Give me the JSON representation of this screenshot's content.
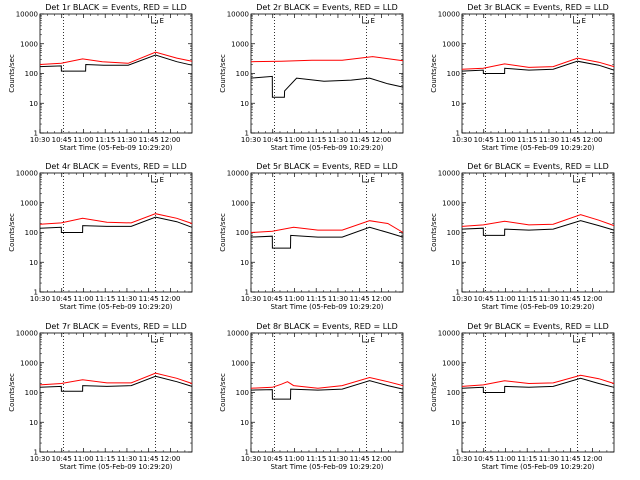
{
  "chart_data": [
    {
      "title": "Det 1r BLACK = Events, RED = LLD",
      "xlabel": "Start Time (05-Feb-09 10:29:20)",
      "ylabel": "Counts/sec",
      "type": "line",
      "yscale": "log",
      "ylim": [
        1,
        10000
      ],
      "xlim": [
        0,
        100
      ],
      "x_tick_labels": [
        "10:30",
        "10:45",
        "11:00",
        "11:15",
        "11:30",
        "11:45",
        "12:00"
      ],
      "y_tick_labels": [
        "1",
        "10",
        "100",
        "1000",
        "10000"
      ],
      "vlines_x": [
        15.5,
        76
      ],
      "marker_label": "E",
      "series": [
        {
          "color": "#ff0000",
          "x": [
            0,
            14,
            28,
            41,
            58,
            76,
            90,
            100
          ],
          "y": [
            200,
            220,
            310,
            250,
            220,
            520,
            330,
            260
          ]
        },
        {
          "color": "#000000",
          "x": [
            0,
            14,
            14.1,
            30,
            30.1,
            42,
            58,
            76,
            90,
            100
          ],
          "y": [
            170,
            180,
            120,
            120,
            200,
            190,
            190,
            420,
            250,
            190
          ]
        }
      ]
    },
    {
      "title": "Det 2r BLACK = Events, RED = LLD",
      "xlabel": "Start Time (05-Feb-09 10:29:20)",
      "ylabel": "Counts/sec",
      "type": "line",
      "yscale": "log",
      "ylim": [
        1,
        10000
      ],
      "xlim": [
        0,
        100
      ],
      "x_tick_labels": [
        "10:30",
        "10:45",
        "11:00",
        "11:15",
        "11:30",
        "11:45",
        "12:00"
      ],
      "y_tick_labels": [
        "1",
        "10",
        "100",
        "1000",
        "10000"
      ],
      "vlines_x": [
        15.5,
        76
      ],
      "marker_label": "E",
      "series": [
        {
          "color": "#ff0000",
          "x": [
            0,
            20,
            40,
            60,
            80,
            100
          ],
          "y": [
            250,
            260,
            280,
            280,
            370,
            270
          ]
        },
        {
          "color": "#000000",
          "x": [
            0,
            14,
            14.1,
            22,
            22.1,
            30,
            48,
            66,
            78,
            90,
            100
          ],
          "y": [
            70,
            80,
            16,
            16,
            26,
            70,
            55,
            60,
            70,
            45,
            35
          ]
        }
      ]
    },
    {
      "title": "Det 3r BLACK = Events, RED = LLD",
      "xlabel": "Start Time (05-Feb-09 10:29:20)",
      "ylabel": "Counts/sec",
      "type": "line",
      "yscale": "log",
      "ylim": [
        1,
        10000
      ],
      "xlim": [
        0,
        100
      ],
      "x_tick_labels": [
        "10:30",
        "10:45",
        "11:00",
        "11:15",
        "11:30",
        "11:45",
        "12:00"
      ],
      "y_tick_labels": [
        "1",
        "10",
        "100",
        "1000",
        "10000"
      ],
      "vlines_x": [
        15.5,
        76
      ],
      "marker_label": "E",
      "series": [
        {
          "color": "#ff0000",
          "x": [
            0,
            14,
            28,
            44,
            60,
            76,
            90,
            100
          ],
          "y": [
            140,
            150,
            210,
            160,
            170,
            330,
            240,
            170
          ]
        },
        {
          "color": "#000000",
          "x": [
            0,
            14,
            14.1,
            28,
            28.1,
            44,
            60,
            76,
            90,
            100
          ],
          "y": [
            120,
            130,
            100,
            100,
            150,
            130,
            140,
            260,
            190,
            130
          ]
        }
      ]
    },
    {
      "title": "Det 4r BLACK = Events, RED = LLD",
      "xlabel": "Start Time (05-Feb-09 10:29:20)",
      "ylabel": "Counts/sec",
      "type": "line",
      "yscale": "log",
      "ylim": [
        1,
        10000
      ],
      "xlim": [
        0,
        100
      ],
      "x_tick_labels": [
        "10:30",
        "10:45",
        "11:00",
        "11:15",
        "11:30",
        "11:45",
        "12:00"
      ],
      "y_tick_labels": [
        "1",
        "10",
        "100",
        "1000",
        "10000"
      ],
      "vlines_x": [
        15.5,
        76
      ],
      "marker_label": "E",
      "series": [
        {
          "color": "#ff0000",
          "x": [
            0,
            14,
            28,
            44,
            60,
            76,
            90,
            100
          ],
          "y": [
            190,
            210,
            300,
            220,
            210,
            430,
            300,
            200
          ]
        },
        {
          "color": "#000000",
          "x": [
            0,
            14,
            14.1,
            28,
            28.1,
            44,
            60,
            76,
            90,
            100
          ],
          "y": [
            140,
            150,
            100,
            100,
            170,
            160,
            160,
            330,
            230,
            150
          ]
        }
      ]
    },
    {
      "title": "Det 5r BLACK = Events, RED = LLD",
      "xlabel": "Start Time (05-Feb-09 10:29:20)",
      "ylabel": "Counts/sec",
      "type": "line",
      "yscale": "log",
      "ylim": [
        1,
        10000
      ],
      "xlim": [
        0,
        100
      ],
      "x_tick_labels": [
        "10:30",
        "10:45",
        "11:00",
        "11:15",
        "11:30",
        "11:45",
        "12:00"
      ],
      "y_tick_labels": [
        "1",
        "10",
        "100",
        "1000",
        "10000"
      ],
      "vlines_x": [
        15.5,
        76
      ],
      "marker_label": "E",
      "series": [
        {
          "color": "#ff0000",
          "x": [
            0,
            14,
            28,
            44,
            60,
            78,
            90,
            100
          ],
          "y": [
            100,
            110,
            150,
            120,
            120,
            250,
            200,
            100
          ]
        },
        {
          "color": "#000000",
          "x": [
            0,
            14,
            14.1,
            26,
            26.1,
            44,
            60,
            78,
            90,
            100
          ],
          "y": [
            70,
            75,
            30,
            30,
            80,
            70,
            70,
            150,
            100,
            70
          ]
        }
      ]
    },
    {
      "title": "Det 6r BLACK = Events, RED = LLD",
      "xlabel": "Start Time (05-Feb-09 10:29:20)",
      "ylabel": "Counts/sec",
      "type": "line",
      "yscale": "log",
      "ylim": [
        1,
        10000
      ],
      "xlim": [
        0,
        100
      ],
      "x_tick_labels": [
        "10:30",
        "10:45",
        "11:00",
        "11:15",
        "11:30",
        "11:45",
        "12:00"
      ],
      "y_tick_labels": [
        "1",
        "10",
        "100",
        "1000",
        "10000"
      ],
      "vlines_x": [
        15.5,
        76
      ],
      "marker_label": "E",
      "series": [
        {
          "color": "#ff0000",
          "x": [
            0,
            14,
            28,
            44,
            60,
            78,
            90,
            100
          ],
          "y": [
            160,
            180,
            240,
            180,
            190,
            400,
            260,
            170
          ]
        },
        {
          "color": "#000000",
          "x": [
            0,
            14,
            14.1,
            28,
            28.1,
            44,
            60,
            78,
            90,
            100
          ],
          "y": [
            130,
            140,
            80,
            80,
            130,
            120,
            130,
            250,
            170,
            120
          ]
        }
      ]
    },
    {
      "title": "Det 7r BLACK = Events, RED = LLD",
      "xlabel": "Start Time (05-Feb-09 10:29:20)",
      "ylabel": "Counts/sec",
      "type": "line",
      "yscale": "log",
      "ylim": [
        1,
        10000
      ],
      "xlim": [
        0,
        100
      ],
      "x_tick_labels": [
        "10:30",
        "10:45",
        "11:00",
        "11:15",
        "11:30",
        "11:45",
        "12:00"
      ],
      "y_tick_labels": [
        "1",
        "10",
        "100",
        "1000",
        "10000"
      ],
      "vlines_x": [
        15.5,
        76
      ],
      "marker_label": "E",
      "series": [
        {
          "color": "#ff0000",
          "x": [
            0,
            14,
            28,
            44,
            60,
            76,
            90,
            100
          ],
          "y": [
            180,
            200,
            270,
            210,
            210,
            450,
            300,
            200
          ]
        },
        {
          "color": "#000000",
          "x": [
            0,
            14,
            14.1,
            28,
            28.1,
            44,
            60,
            76,
            90,
            100
          ],
          "y": [
            150,
            160,
            110,
            110,
            170,
            160,
            170,
            350,
            230,
            160
          ]
        }
      ]
    },
    {
      "title": "Det 8r BLACK = Events, RED = LLD",
      "xlabel": "Start Time (05-Feb-09 10:29:20)",
      "ylabel": "Counts/sec",
      "type": "line",
      "yscale": "log",
      "ylim": [
        1,
        10000
      ],
      "xlim": [
        0,
        100
      ],
      "x_tick_labels": [
        "10:30",
        "10:45",
        "11:00",
        "11:15",
        "11:30",
        "11:45",
        "12:00"
      ],
      "y_tick_labels": [
        "1",
        "10",
        "100",
        "1000",
        "10000"
      ],
      "vlines_x": [
        15.5,
        76
      ],
      "marker_label": "E",
      "series": [
        {
          "color": "#ff0000",
          "x": [
            0,
            14,
            20,
            24,
            28,
            44,
            60,
            78,
            90,
            100
          ],
          "y": [
            140,
            150,
            190,
            230,
            170,
            140,
            170,
            320,
            230,
            170
          ]
        },
        {
          "color": "#000000",
          "x": [
            0,
            14,
            14.1,
            26,
            26.1,
            44,
            60,
            78,
            90,
            100
          ],
          "y": [
            120,
            125,
            60,
            60,
            130,
            120,
            130,
            250,
            170,
            130
          ]
        }
      ]
    },
    {
      "title": "Det 9r BLACK = Events, RED = LLD",
      "xlabel": "Start Time (05-Feb-09 10:29:20)",
      "ylabel": "Counts/sec",
      "type": "line",
      "yscale": "log",
      "ylim": [
        1,
        10000
      ],
      "xlim": [
        0,
        100
      ],
      "x_tick_labels": [
        "10:30",
        "10:45",
        "11:00",
        "11:15",
        "11:30",
        "11:45",
        "12:00"
      ],
      "y_tick_labels": [
        "1",
        "10",
        "100",
        "1000",
        "10000"
      ],
      "vlines_x": [
        15.5,
        76
      ],
      "marker_label": "E",
      "series": [
        {
          "color": "#ff0000",
          "x": [
            0,
            14,
            28,
            44,
            60,
            78,
            90,
            100
          ],
          "y": [
            160,
            180,
            250,
            200,
            210,
            380,
            290,
            200
          ]
        },
        {
          "color": "#000000",
          "x": [
            0,
            14,
            14.1,
            28,
            28.1,
            44,
            60,
            78,
            90,
            100
          ],
          "y": [
            140,
            150,
            100,
            100,
            160,
            150,
            160,
            300,
            200,
            150
          ]
        }
      ]
    }
  ]
}
